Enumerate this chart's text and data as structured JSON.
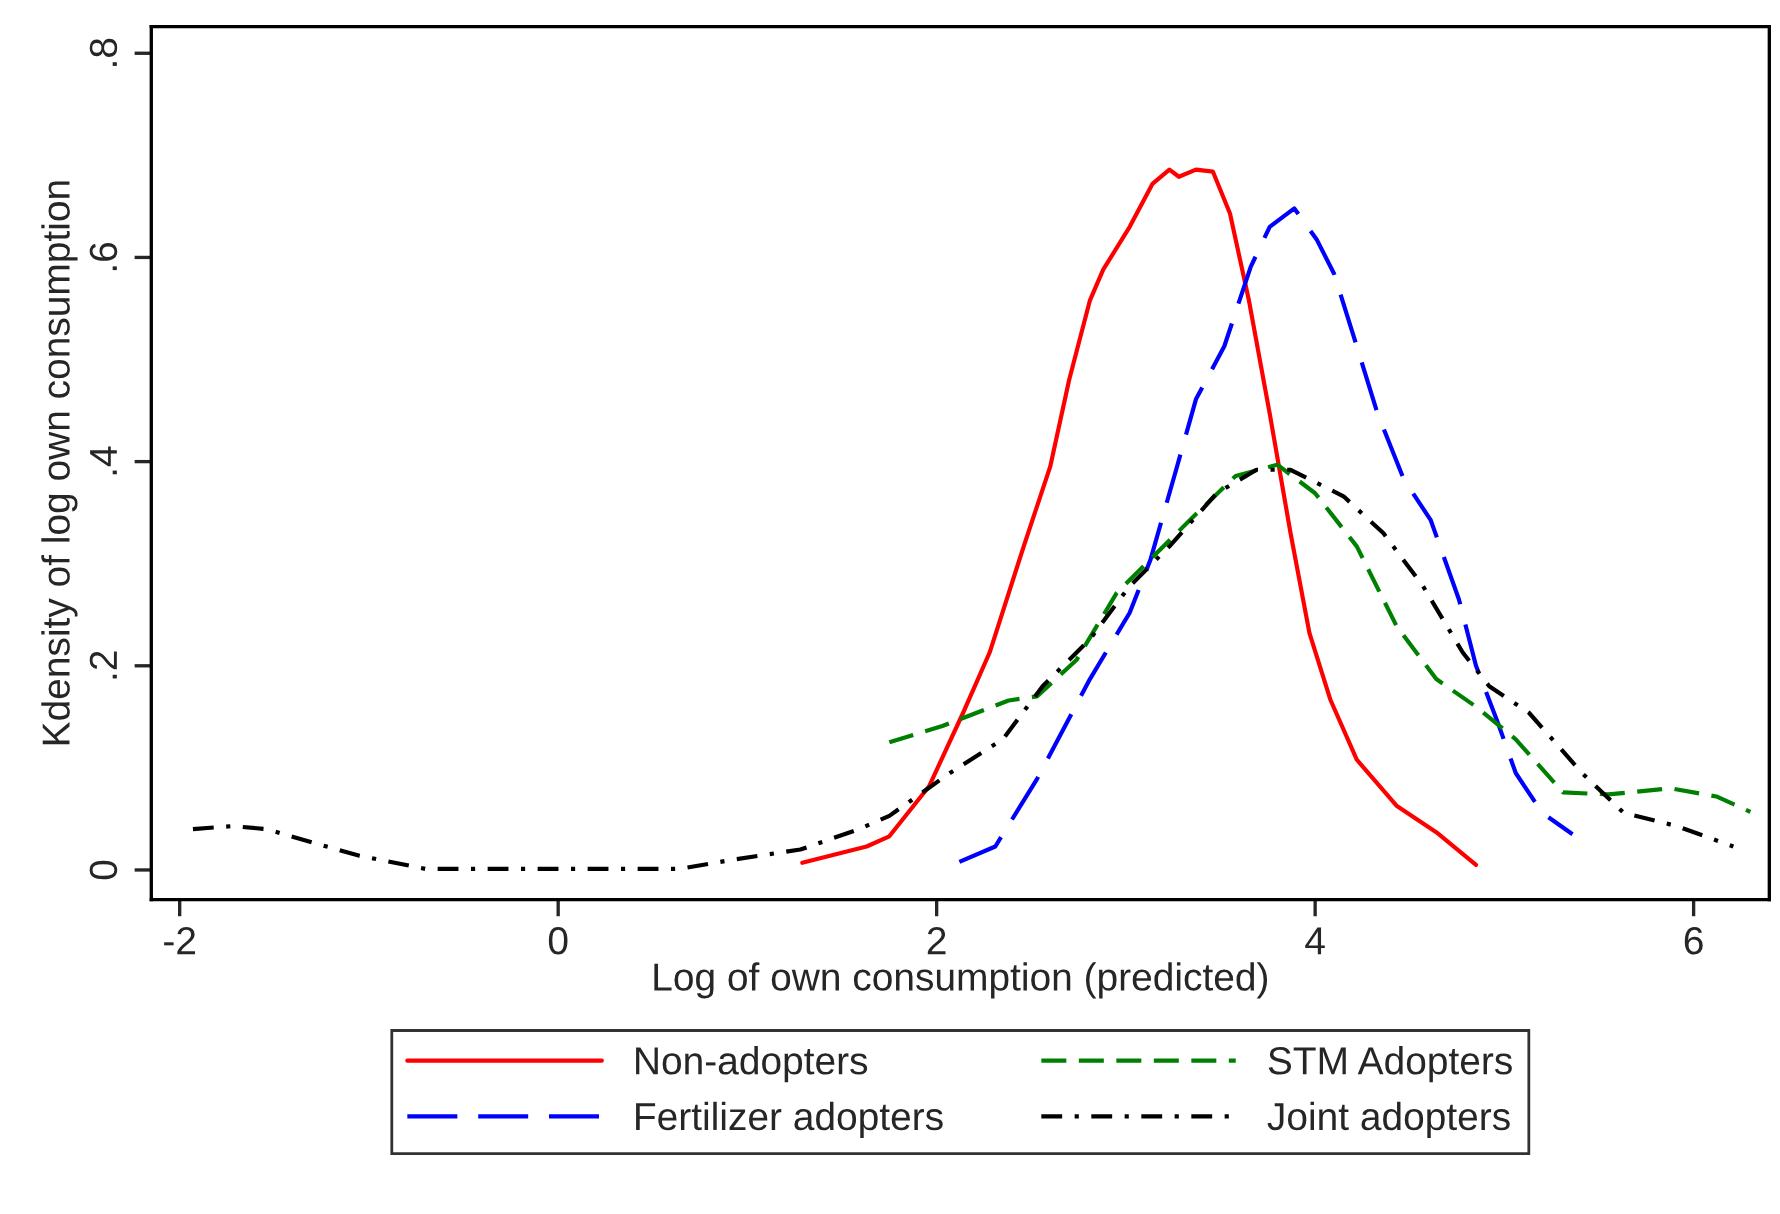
{
  "chart_data": {
    "type": "line",
    "xlabel": "Log of own consumption (predicted)",
    "ylabel": "Kdensity of log own consumption",
    "xlim": [
      -2.15,
      6.4
    ],
    "xticks": [
      -2,
      0,
      2,
      4,
      6
    ],
    "ylim": [
      -0.029,
      0.826
    ],
    "yticks": [
      {
        "value": 0,
        "label": "0"
      },
      {
        "value": 0.2,
        "label": ".2"
      },
      {
        "value": 0.4,
        "label": ".4"
      },
      {
        "value": 0.6,
        "label": ".6"
      },
      {
        "value": 0.8,
        "label": ".8"
      }
    ],
    "grid": false,
    "legend": "bottom",
    "marker": "none",
    "series": [
      {
        "name": "Non-adopters",
        "color": "#ff0000",
        "line_style": "solid",
        "x": [
          1.29,
          1.63,
          1.75,
          1.96,
          2.14,
          2.28,
          2.46,
          2.6,
          2.7,
          2.81,
          2.88,
          3.02,
          3.14,
          3.23,
          3.28,
          3.37,
          3.46,
          3.55,
          3.65,
          3.76,
          3.87,
          3.97,
          4.08,
          4.22,
          4.43,
          4.64,
          4.85
        ],
        "values": [
          0.007,
          0.023,
          0.033,
          0.082,
          0.154,
          0.213,
          0.317,
          0.395,
          0.48,
          0.558,
          0.588,
          0.63,
          0.672,
          0.686,
          0.679,
          0.686,
          0.684,
          0.643,
          0.558,
          0.447,
          0.33,
          0.232,
          0.167,
          0.108,
          0.063,
          0.037,
          0.005
        ]
      },
      {
        "name": "Fertilizer adopters",
        "color": "#0000ff",
        "line_style": "longdash",
        "x": [
          2.12,
          2.31,
          2.53,
          2.81,
          3.02,
          3.13,
          3.27,
          3.37,
          3.52,
          3.66,
          3.76,
          3.89,
          4.01,
          4.1,
          4.22,
          4.33,
          4.47,
          4.61,
          4.76,
          4.85,
          4.96,
          5.06,
          5.2,
          5.36
        ],
        "values": [
          0.008,
          0.023,
          0.089,
          0.187,
          0.252,
          0.304,
          0.395,
          0.461,
          0.513,
          0.591,
          0.63,
          0.648,
          0.617,
          0.584,
          0.513,
          0.447,
          0.382,
          0.343,
          0.265,
          0.2,
          0.147,
          0.095,
          0.056,
          0.035
        ]
      },
      {
        "name": "STM Adopters",
        "color": "#008000",
        "line_style": "dashed",
        "x": [
          1.75,
          2.03,
          2.38,
          2.53,
          2.74,
          2.95,
          3.16,
          3.34,
          3.58,
          3.8,
          4.0,
          4.22,
          4.43,
          4.64,
          4.85,
          5.06,
          5.31,
          5.55,
          5.88,
          6.12,
          6.3
        ],
        "values": [
          0.125,
          0.141,
          0.166,
          0.17,
          0.206,
          0.271,
          0.31,
          0.343,
          0.386,
          0.397,
          0.369,
          0.317,
          0.239,
          0.187,
          0.16,
          0.128,
          0.076,
          0.074,
          0.08,
          0.072,
          0.057
        ]
      },
      {
        "name": "Joint adopters",
        "color": "#000000",
        "line_style": "dashdot",
        "x": [
          -1.93,
          -1.72,
          -1.54,
          -1.3,
          -1.05,
          -0.7,
          0.64,
          0.92,
          1.28,
          1.59,
          1.75,
          2.07,
          2.35,
          2.56,
          2.81,
          3.02,
          3.23,
          3.48,
          3.69,
          3.87,
          4.15,
          4.36,
          4.57,
          4.78,
          4.92,
          5.13,
          5.41,
          5.63,
          5.91,
          6.21
        ],
        "values": [
          0.04,
          0.043,
          0.04,
          0.027,
          0.014,
          0.001,
          0.001,
          0.01,
          0.02,
          0.04,
          0.053,
          0.095,
          0.128,
          0.18,
          0.226,
          0.278,
          0.317,
          0.369,
          0.392,
          0.392,
          0.366,
          0.33,
          0.278,
          0.213,
          0.18,
          0.154,
          0.095,
          0.056,
          0.043,
          0.023
        ]
      }
    ]
  }
}
